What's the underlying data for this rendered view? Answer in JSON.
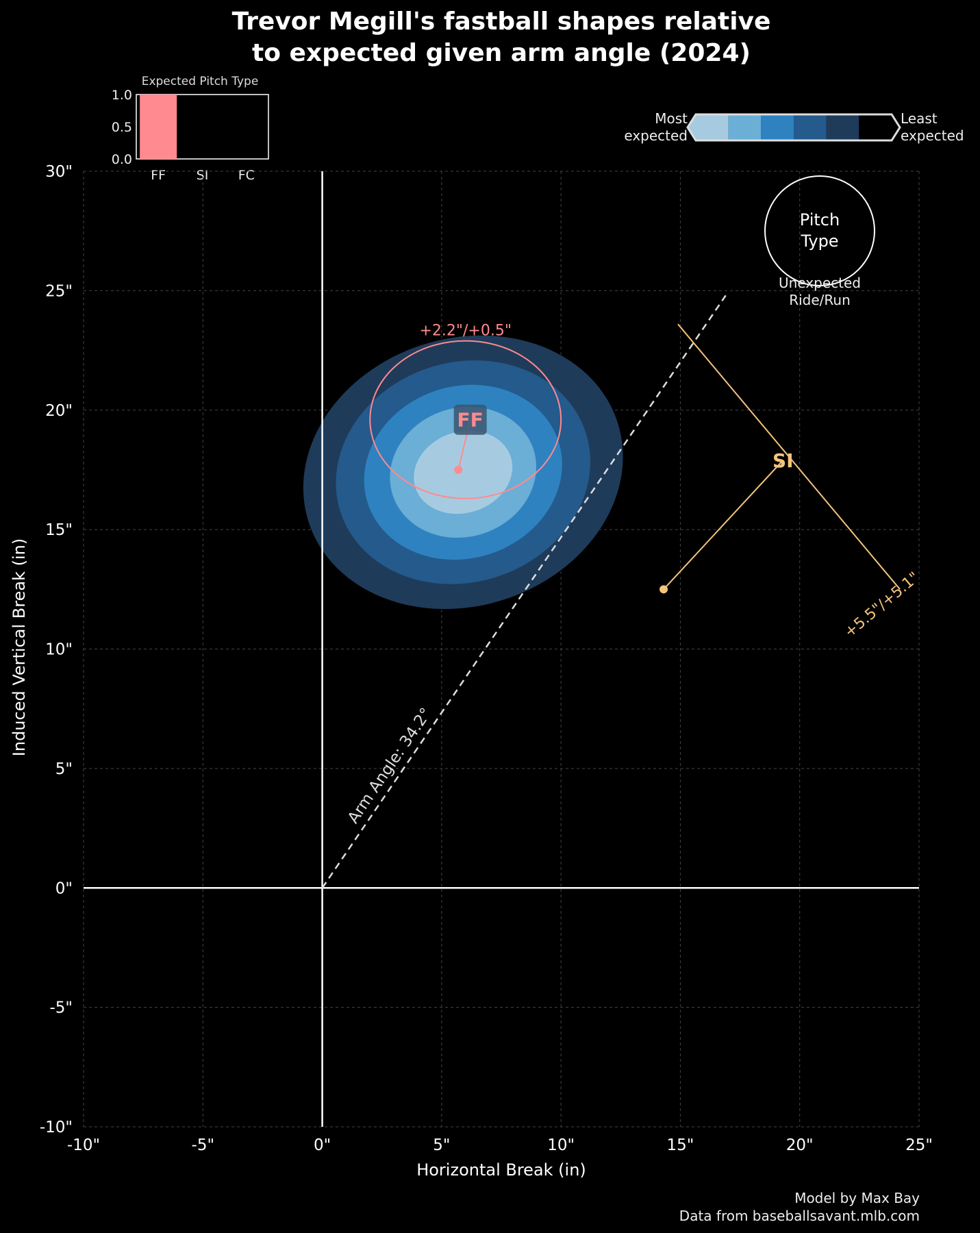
{
  "chart_data": {
    "type": "scatter",
    "title_line1": "Trevor Megill's fastball shapes relative",
    "title_line2": "to expected given arm angle (2024)",
    "xlabel": "Horizontal Break (in)",
    "ylabel": "Induced Vertical Break (in)",
    "xlim": [
      -10,
      25
    ],
    "ylim": [
      -10,
      30
    ],
    "x_ticks": [
      -10,
      -5,
      0,
      5,
      10,
      15,
      20,
      25
    ],
    "x_tick_labels": [
      "-10\"",
      "-5\"",
      "0\"",
      "5\"",
      "10\"",
      "15\"",
      "20\"",
      "25\""
    ],
    "y_ticks": [
      -10,
      -5,
      0,
      5,
      10,
      15,
      20,
      25,
      30
    ],
    "y_tick_labels": [
      "-10\"",
      "-5\"",
      "0\"",
      "5\"",
      "10\"",
      "15\"",
      "20\"",
      "25\"",
      "30\""
    ],
    "grid": true,
    "arm_angle": {
      "label": "Arm Angle: 34.2°",
      "degrees": 34.2,
      "line_end": [
        16.9,
        24.8
      ]
    },
    "expected_distribution": {
      "center": [
        5.9,
        17.4
      ],
      "contours": [
        {
          "rx": 6.8,
          "ry": 5.6,
          "color": "#1f3b5a"
        },
        {
          "rx": 5.4,
          "ry": 4.6,
          "color": "#245a8c"
        },
        {
          "rx": 4.2,
          "ry": 3.6,
          "color": "#2f82c0"
        },
        {
          "rx": 3.1,
          "ry": 2.7,
          "color": "#6baed6"
        },
        {
          "rx": 2.1,
          "ry": 1.7,
          "color": "#a6cbe0"
        }
      ]
    },
    "pitches": [
      {
        "name": "FF",
        "color": "#ff8a8f",
        "expected": [
          5.7,
          17.5
        ],
        "actual": [
          6.2,
          19.6
        ],
        "diff_label": "+2.2\"/+0.5\"",
        "ride_circle": {
          "center": [
            6.0,
            19.6
          ],
          "rx": 4.0,
          "ry": 3.3
        }
      },
      {
        "name": "SI",
        "color": "#f3c47d",
        "expected": [
          14.3,
          12.5
        ],
        "actual": [
          19.3,
          17.9
        ],
        "diff_label": "+5.5\"/+5.1\"",
        "run_line": {
          "start": [
            14.9,
            23.6
          ],
          "end": [
            24.2,
            12.5
          ]
        }
      }
    ],
    "inset_bar": {
      "title": "Expected Pitch Type",
      "categories": [
        "FF",
        "SI",
        "FC"
      ],
      "values": [
        1.0,
        0.0,
        0.0
      ],
      "color": "#ff8a8f",
      "y_ticks": [
        "0.0",
        "0.5",
        "1.0"
      ]
    },
    "colorbar": {
      "left_label_line1": "Most",
      "left_label_line2": "expected",
      "right_label_line1": "Least",
      "right_label_line2": "expected",
      "colors": [
        "#a6cbe0",
        "#6baed6",
        "#2f82c0",
        "#245a8c",
        "#1f3b5a",
        "#000000"
      ]
    },
    "legend": {
      "circle_line1": "Pitch",
      "circle_line2": "Type",
      "below_line1": "Unexpected",
      "below_line2": "Ride/Run"
    },
    "credits": {
      "line1": "Model by Max Bay",
      "line2": "Data from baseballsavant.mlb.com"
    }
  }
}
